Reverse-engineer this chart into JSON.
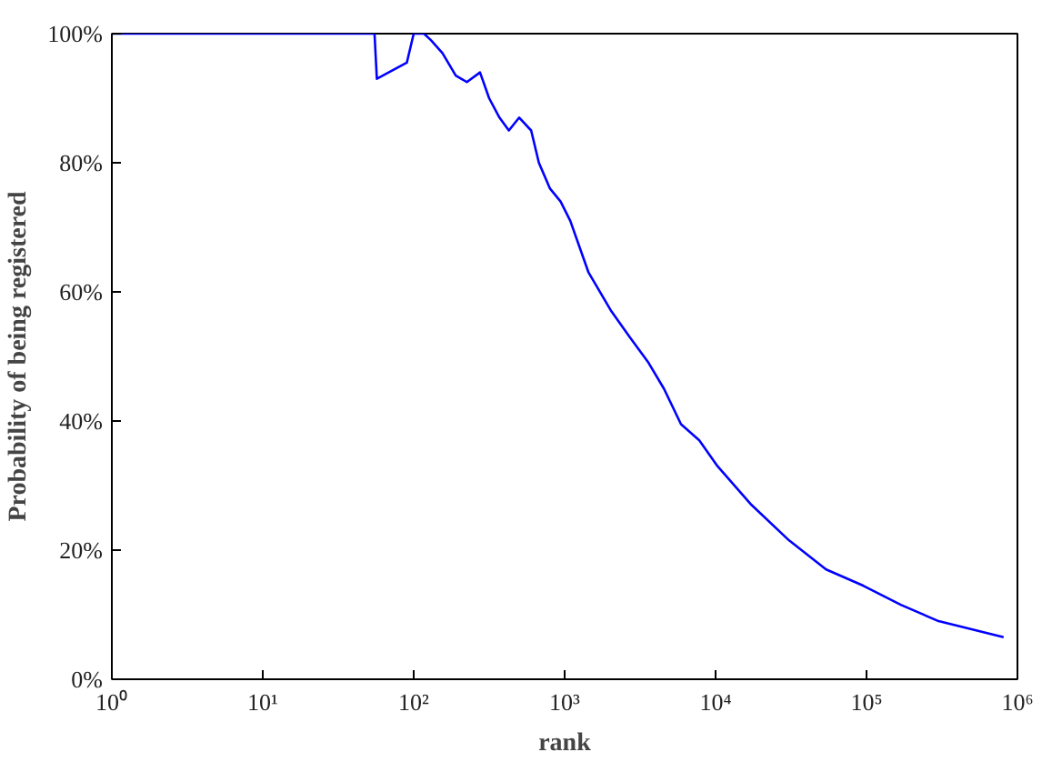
{
  "chart_data": {
    "type": "line",
    "xlabel": "rank",
    "ylabel": "Probability of being registered",
    "log": "x",
    "grid": false,
    "xlim": [
      1,
      1000000
    ],
    "ylim": [
      0,
      100
    ],
    "xticks": [
      {
        "value": 1,
        "label": "10⁰"
      },
      {
        "value": 10,
        "label": "10¹"
      },
      {
        "value": 100,
        "label": "10²"
      },
      {
        "value": 1000,
        "label": "10³"
      },
      {
        "value": 10000,
        "label": "10⁴"
      },
      {
        "value": 100000,
        "label": "10⁵"
      },
      {
        "value": 1000000,
        "label": "10⁶"
      }
    ],
    "yticks": [
      {
        "value": 0,
        "label": "0%"
      },
      {
        "value": 20,
        "label": "20%"
      },
      {
        "value": 40,
        "label": "40%"
      },
      {
        "value": 60,
        "label": "60%"
      },
      {
        "value": 80,
        "label": "80%"
      },
      {
        "value": 100,
        "label": "100%"
      }
    ],
    "series": [
      {
        "color": "#0000ff",
        "x": [
          1,
          55,
          57,
          90,
          100,
          117,
          130,
          155,
          190,
          225,
          275,
          316,
          370,
          427,
          500,
          600,
          675,
          800,
          940,
          1090,
          1440,
          2040,
          2700,
          3600,
          4550,
          5900,
          7800,
          10300,
          17300,
          30700,
          54000,
          95000,
          170000,
          300000,
          810000
        ],
        "values": [
          100,
          100,
          93,
          95.5,
          100,
          100,
          99,
          97,
          93.5,
          92.5,
          94,
          90,
          87,
          85,
          87,
          85,
          80,
          76,
          74,
          71,
          63,
          57,
          53,
          49,
          45,
          39.5,
          37,
          33,
          27,
          21.5,
          17,
          14.5,
          11.5,
          9,
          6.5
        ]
      }
    ]
  }
}
